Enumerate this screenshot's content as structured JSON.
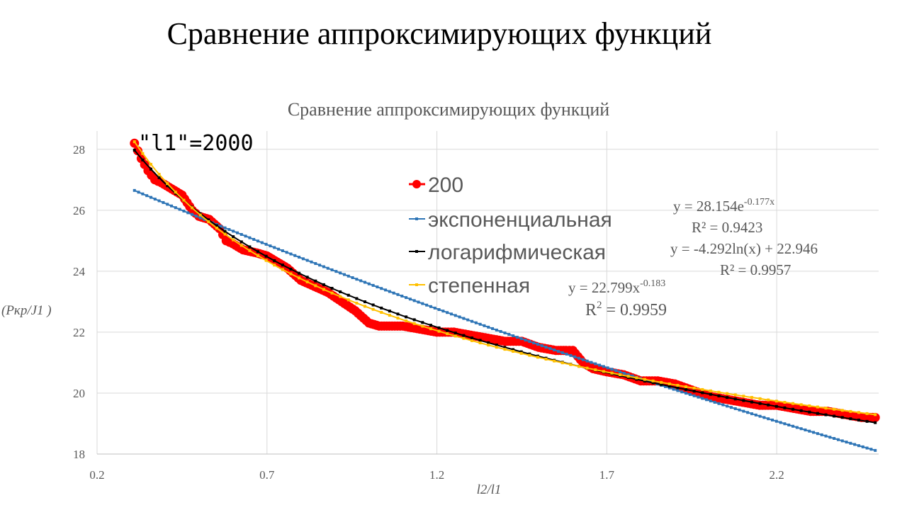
{
  "slide": {
    "title": "Сравнение аппроксимирующих функций"
  },
  "chart_data": {
    "type": "scatter",
    "title": "Сравнение аппроксимирующих функций",
    "xlabel": "l2/l1",
    "ylabel": "(Pкр/J1 )",
    "xlim": [
      0.2,
      2.5
    ],
    "ylim": [
      18,
      28.6
    ],
    "xticks": [
      "0.2",
      "0.7",
      "1.2",
      "1.7",
      "2.2"
    ],
    "yticks": [
      "18",
      "20",
      "22",
      "24",
      "26",
      "28"
    ],
    "grid": true,
    "legend_position": "center-top",
    "annotation": "\"l1\"=2000",
    "colors": {
      "data": "#ff0000",
      "exponential": "#2e75b6",
      "logarithmic": "#000000",
      "power": "#ffc000",
      "grid": "#d9d9d9",
      "text": "#595959"
    },
    "series": [
      {
        "name": "200",
        "kind": "data",
        "x": [
          0.31,
          0.33,
          0.35,
          0.37,
          0.39,
          0.42,
          0.45,
          0.48,
          0.5,
          0.53,
          0.56,
          0.58,
          0.6,
          0.63,
          0.67,
          0.7,
          0.73,
          0.76,
          0.8,
          0.84,
          0.88,
          0.92,
          0.96,
          1.0,
          1.03,
          1.06,
          1.1,
          1.15,
          1.2,
          1.25,
          1.3,
          1.35,
          1.4,
          1.45,
          1.5,
          1.55,
          1.58,
          1.6,
          1.63,
          1.66,
          1.7,
          1.75,
          1.8,
          1.85,
          1.9,
          1.95,
          2.0,
          2.05,
          2.1,
          2.15,
          2.2,
          2.25,
          2.3,
          2.35,
          2.4,
          2.45,
          2.49
        ],
        "y": [
          28.2,
          27.7,
          27.3,
          27.0,
          26.9,
          26.7,
          26.5,
          26.0,
          25.8,
          25.7,
          25.4,
          25.0,
          24.9,
          24.7,
          24.6,
          24.5,
          24.3,
          24.1,
          23.7,
          23.5,
          23.3,
          23.0,
          22.7,
          22.3,
          22.2,
          22.2,
          22.2,
          22.1,
          22.0,
          22.0,
          21.9,
          21.8,
          21.7,
          21.7,
          21.5,
          21.4,
          21.4,
          21.4,
          21.0,
          20.8,
          20.7,
          20.6,
          20.4,
          20.4,
          20.3,
          20.1,
          19.9,
          19.8,
          19.7,
          19.6,
          19.6,
          19.5,
          19.4,
          19.4,
          19.3,
          19.2,
          19.2
        ]
      },
      {
        "name": "экспоненциальная",
        "kind": "fit",
        "model": "exp",
        "a": 28.154,
        "b": -0.177,
        "xrange": [
          0.31,
          2.49
        ],
        "equation": "y = 28.154e",
        "exponent": "-0.177x",
        "r2": "R² = 0.9423"
      },
      {
        "name": "логарифмическая",
        "kind": "fit",
        "model": "log",
        "a": -4.292,
        "b": 22.946,
        "xrange": [
          0.31,
          2.49
        ],
        "equation": "y = -4.292ln(x) + 22.946",
        "r2": "R² = 0.9957"
      },
      {
        "name": "степенная",
        "kind": "fit",
        "model": "power",
        "a": 22.799,
        "b": -0.183,
        "xrange": [
          0.31,
          2.49
        ],
        "equation": "y = 22.799x",
        "exponent": "-0.183",
        "r2": "R",
        "r2_sup": "2",
        "r2_val": " = 0.9959"
      }
    ]
  }
}
